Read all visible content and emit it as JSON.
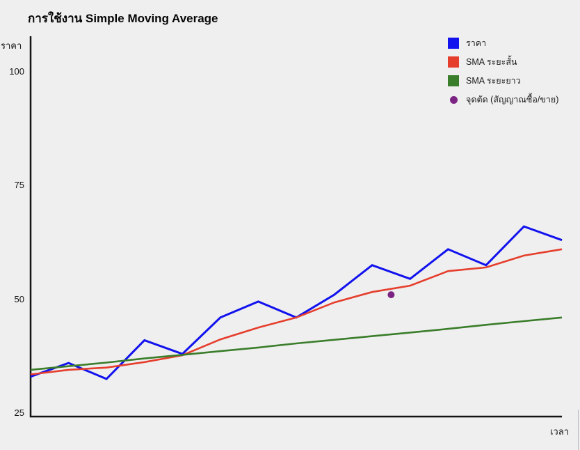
{
  "page": {
    "background": "#efefef"
  },
  "chart_data": {
    "type": "line",
    "title": "การใช้งาน Simple Moving Average",
    "xlabel": "เวลา",
    "ylabel": "ราคา",
    "x": [
      1,
      2,
      3,
      4,
      5,
      6,
      7,
      8,
      9,
      10,
      11,
      12,
      13,
      14,
      15
    ],
    "series": [
      {
        "name": "ราคา",
        "color": "#1212ee",
        "stroke_width": 3,
        "values": [
          33,
          36,
          32.5,
          41,
          38,
          46,
          49.5,
          46,
          51,
          57.5,
          54.5,
          61,
          57.5,
          66,
          63
        ]
      },
      {
        "name": "SMA ระยะสั้น",
        "color": "#e53e2c",
        "stroke_width": 2.6,
        "values": [
          33.5,
          34.5,
          35,
          36.2,
          37.7,
          41.2,
          43.8,
          46,
          49.3,
          51.6,
          53,
          56.2,
          57,
          59.6,
          61
        ]
      },
      {
        "name": "SMA ระยะยาว",
        "color": "#3a7d2a",
        "stroke_width": 2.6,
        "values": [
          34.5,
          35.3,
          36.1,
          37,
          37.8,
          38.6,
          39.4,
          40.3,
          41.1,
          41.9,
          42.7,
          43.5,
          44.4,
          45.2,
          46
        ]
      }
    ],
    "marker": {
      "name": "จุดตัด (สัญญาณซื้อ/ขาย)",
      "color": "#7c2483",
      "x": 10.5,
      "value": 51,
      "radius": 5
    },
    "yticks": [
      25,
      50,
      75,
      100
    ],
    "ylim": [
      25,
      108
    ],
    "grid": false,
    "legend_position": "top-right",
    "axis_color": "#141414"
  }
}
